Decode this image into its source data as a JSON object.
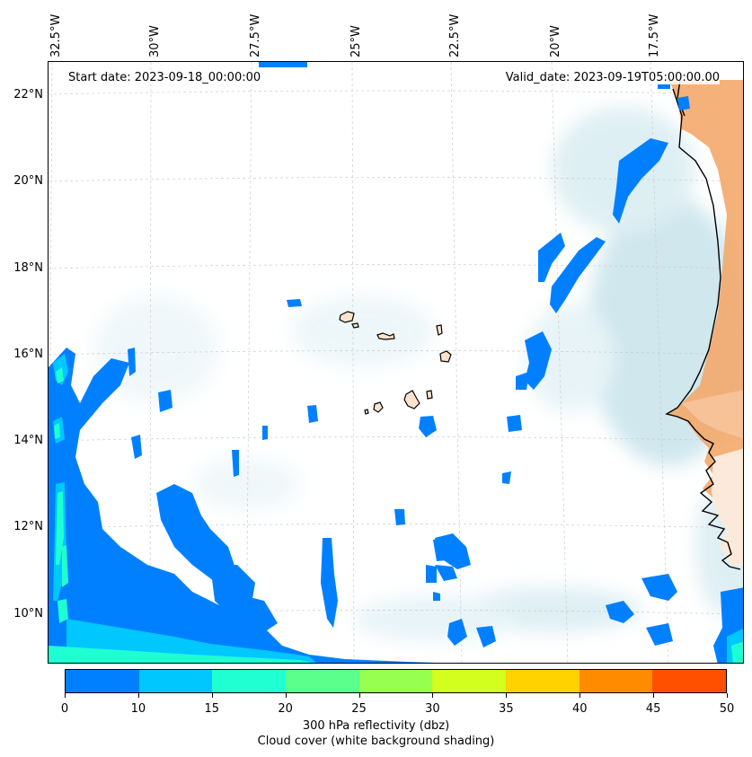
{
  "header": {
    "start_date": "Start date: 2023-09-18_00:00:00",
    "valid_date": "Valid_date: 2023-09-19T05:00:00.00"
  },
  "axes": {
    "lon_labels": [
      "32.5°W",
      "30°W",
      "27.5°W",
      "25°W",
      "22.5°W",
      "20°W",
      "17.5°W"
    ],
    "lat_labels": [
      "22°N",
      "20°N",
      "18°N",
      "16°N",
      "14°N",
      "12°N",
      "10°N"
    ]
  },
  "colorbar": {
    "ticks": [
      "0",
      "10",
      "15",
      "20",
      "25",
      "30",
      "35",
      "40",
      "45",
      "50"
    ],
    "colors": [
      "#0080ff",
      "#00c8ff",
      "#1effd2",
      "#5aff8c",
      "#96ff50",
      "#d2ff1e",
      "#ffd200",
      "#ff8c00",
      "#ff5000"
    ],
    "label_line1": "300 hPa reflectivity (dbz)",
    "label_line2": "Cloud cover (white background shading)"
  },
  "map": {
    "reflectivity_color": "#0080ff",
    "cyan_color": "#00c8ff",
    "teal_color": "#1effd2",
    "cloud_color": "#a8d4e0",
    "land_color": "#f0a060",
    "coast_color": "#000000"
  }
}
